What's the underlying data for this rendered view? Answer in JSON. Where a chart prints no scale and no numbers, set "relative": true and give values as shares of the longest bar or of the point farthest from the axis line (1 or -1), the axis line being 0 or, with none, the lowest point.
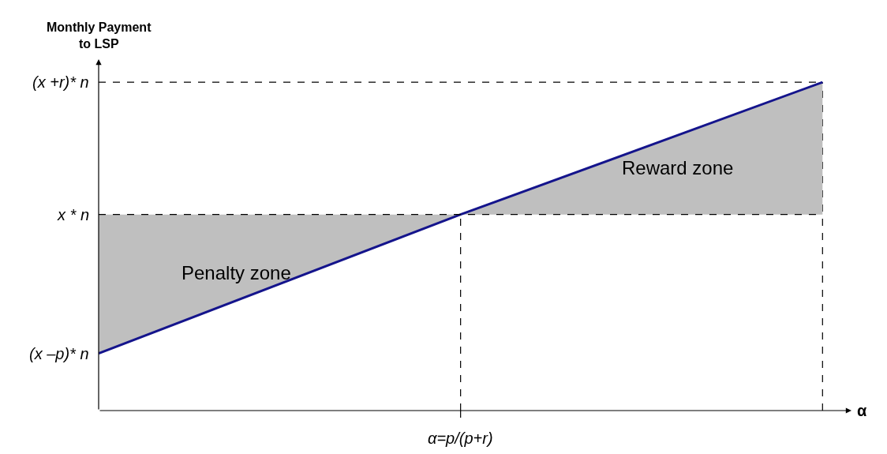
{
  "chart_data": {
    "type": "line",
    "relative": true,
    "ylabel": "Monthly Payment\nto LSP",
    "xlabel": "α",
    "categories": [
      null,
      null,
      null
    ],
    "series": [
      {
        "color": "#14148c",
        "values": [
          0.174,
          0.597,
          1
        ],
        "lower": [
          0.174,
          0.597,
          0.597
        ],
        "upper": [
          0.597,
          0.597,
          1
        ]
      }
    ],
    "ref_lines": [
      {
        "axis": "y",
        "value": 0.597,
        "label": "x * n",
        "line_style": "dashed",
        "color": "#000000"
      },
      {
        "axis": "y",
        "value": 1,
        "label": "(x +r)* n",
        "line_style": "dashed",
        "color": "#000000"
      }
    ],
    "annotations": [
      "(x –p)* n",
      "α=p/(p+r)",
      "Penalty zone",
      "Reward zone"
    ],
    "grid": false,
    "marker": "none",
    "line_style": "solid"
  }
}
